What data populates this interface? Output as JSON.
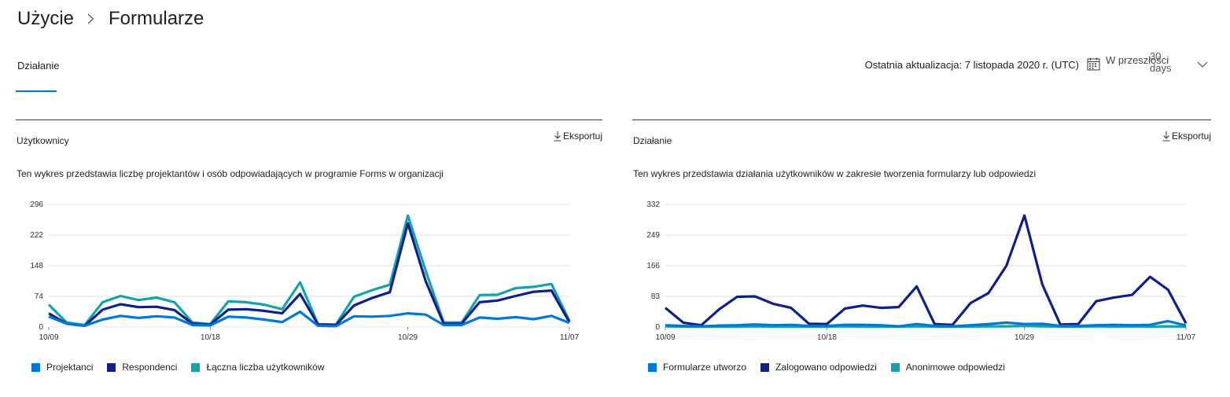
{
  "breadcrumb": {
    "parent": "Użycie",
    "current": "Formularze"
  },
  "tabs": [
    {
      "label": "Działanie",
      "active": true
    }
  ],
  "header": {
    "last_updated": "Ostatnia aktualizacja: 7 listopada 2020 r. (UTC)",
    "range_label": "W przeszłości",
    "range_overlay": "30 days",
    "calendar_icon": "calendar-icon",
    "chevron_icon": "chevron-down-icon"
  },
  "colors": {
    "accent": "#0078d4",
    "series1": "#0078d4",
    "series2": "#0d1f8a",
    "series3": "#13a3a8"
  },
  "users_panel": {
    "title": "Użytkownicy",
    "export_label": "Eksportuj",
    "description": "Ten wykres przedstawia liczbę projektantów i osób odpowiadających w programie Forms w organizacji",
    "legend": [
      "Projektanci",
      "Respondenci",
      "Łączna liczba użytkowników"
    ],
    "y_ticks": [
      "296",
      "222",
      "148",
      "74",
      "0"
    ],
    "x_ticks": [
      "10/09",
      "10/18",
      "10/29",
      "11/07"
    ]
  },
  "activity_panel": {
    "title": "Działanie",
    "export_label": "Eksportuj",
    "description": "Ten wykres przedstawia działania użytkowników w zakresie tworzenia formularzy lub odpowiedzi",
    "legend": [
      "Formularze utworzo",
      "Zalogowano odpowiedzi",
      "Anonimowe odpowiedzi"
    ],
    "y_ticks": [
      "332",
      "249",
      "166",
      "83",
      "0"
    ],
    "x_ticks": [
      "10/09",
      "10/18",
      "10/29",
      "11/07"
    ]
  },
  "chart_data": [
    {
      "type": "line",
      "x": [
        "10/09",
        "10/10",
        "10/11",
        "10/12",
        "10/13",
        "10/14",
        "10/15",
        "10/16",
        "10/17",
        "10/18",
        "10/19",
        "10/20",
        "10/21",
        "10/22",
        "10/23",
        "10/24",
        "10/25",
        "10/26",
        "10/27",
        "10/28",
        "10/29",
        "10/30",
        "10/31",
        "11/01",
        "11/02",
        "11/03",
        "11/04",
        "11/05",
        "11/06",
        "11/07"
      ],
      "ylim": [
        0,
        296
      ],
      "series": [
        {
          "name": "Projektanci",
          "color": "#0078d4",
          "values": [
            25,
            8,
            3,
            18,
            27,
            22,
            26,
            23,
            5,
            4,
            25,
            23,
            18,
            12,
            37,
            3,
            2,
            26,
            25,
            27,
            33,
            30,
            5,
            5,
            23,
            20,
            24,
            19,
            27,
            10
          ]
        },
        {
          "name": "Respondenci",
          "color": "#0d1f8a",
          "values": [
            33,
            8,
            3,
            42,
            55,
            48,
            49,
            41,
            8,
            6,
            42,
            43,
            39,
            33,
            80,
            6,
            5,
            52,
            70,
            84,
            250,
            110,
            8,
            8,
            60,
            64,
            75,
            85,
            88,
            12
          ]
        },
        {
          "name": "Łączna liczba użytkowników",
          "color": "#13a3a8",
          "values": [
            54,
            11,
            5,
            60,
            75,
            65,
            71,
            60,
            11,
            7,
            62,
            60,
            54,
            43,
            108,
            7,
            6,
            73,
            89,
            102,
            269,
            135,
            11,
            11,
            77,
            78,
            94,
            97,
            104,
            15
          ]
        }
      ]
    },
    {
      "type": "line",
      "x": [
        "10/09",
        "10/10",
        "10/11",
        "10/12",
        "10/13",
        "10/14",
        "10/15",
        "10/16",
        "10/17",
        "10/18",
        "10/19",
        "10/20",
        "10/21",
        "10/22",
        "10/23",
        "10/24",
        "10/25",
        "10/26",
        "10/27",
        "10/28",
        "10/29",
        "10/30",
        "10/31",
        "11/01",
        "11/02",
        "11/03",
        "11/04",
        "11/05",
        "11/06",
        "11/07"
      ],
      "ylim": [
        0,
        332
      ],
      "series": [
        {
          "name": "Formularze utworzo",
          "color": "#0078d4",
          "values": [
            5,
            3,
            2,
            4,
            5,
            7,
            5,
            6,
            3,
            3,
            6,
            6,
            5,
            2,
            8,
            3,
            2,
            5,
            8,
            12,
            8,
            9,
            3,
            3,
            5,
            6,
            5,
            6,
            16,
            4
          ]
        },
        {
          "name": "Zalogowano odpowiedzi",
          "color": "#0d1f8a",
          "values": [
            52,
            12,
            5,
            48,
            82,
            83,
            63,
            52,
            9,
            8,
            50,
            58,
            52,
            54,
            110,
            8,
            6,
            65,
            92,
            166,
            302,
            115,
            7,
            8,
            70,
            80,
            87,
            136,
            101,
            10
          ]
        },
        {
          "name": "Anonimowe odpowiedzi",
          "color": "#13a3a8",
          "values": [
            2,
            1,
            1,
            1,
            1,
            2,
            1,
            1,
            1,
            1,
            2,
            1,
            1,
            1,
            2,
            1,
            1,
            1,
            2,
            2,
            3,
            2,
            1,
            1,
            2,
            1,
            2,
            1,
            2,
            1
          ]
        }
      ]
    }
  ]
}
